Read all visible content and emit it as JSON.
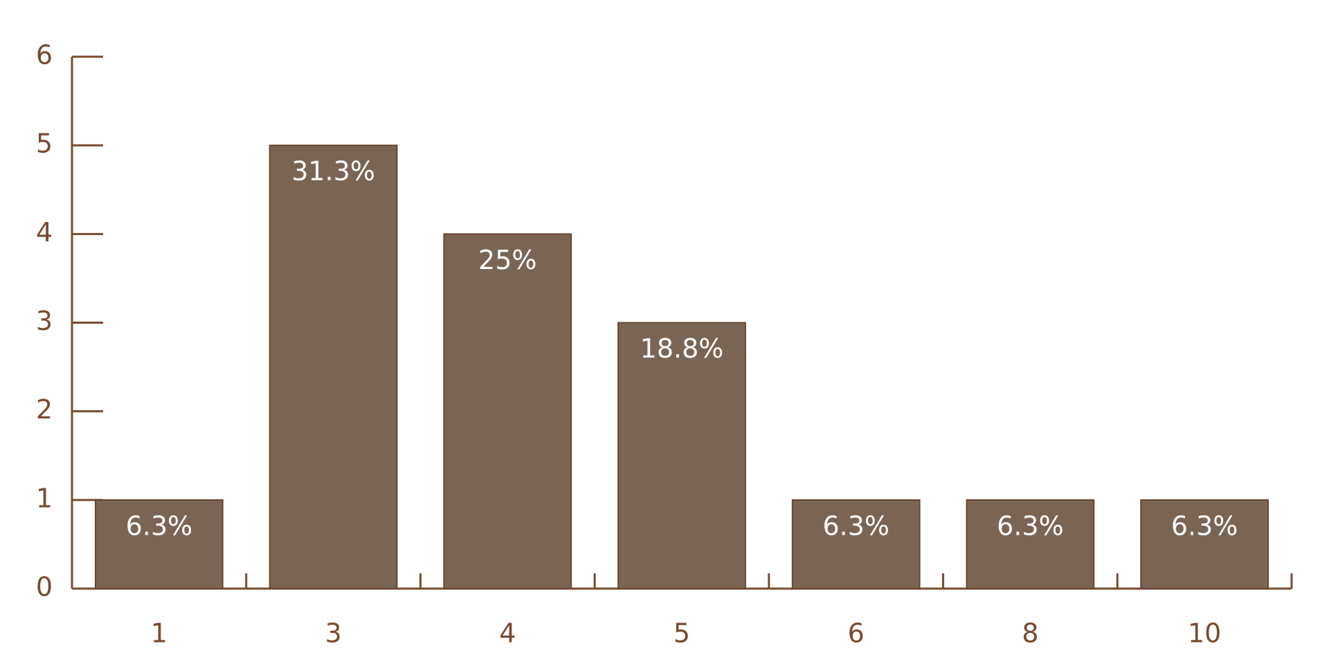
{
  "chart_data": {
    "type": "bar",
    "categories": [
      "1",
      "3",
      "4",
      "5",
      "6",
      "8",
      "10"
    ],
    "values": [
      1,
      5,
      4,
      3,
      1,
      1,
      1
    ],
    "value_labels": [
      "6.3%",
      "31.3%",
      "25%",
      "18.8%",
      "6.3%",
      "6.3%",
      "6.3%"
    ],
    "color": "#7a6555",
    "ylim": [
      0,
      6
    ],
    "yticks": [
      0,
      1,
      2,
      3,
      4,
      5,
      6
    ],
    "grid": false
  }
}
